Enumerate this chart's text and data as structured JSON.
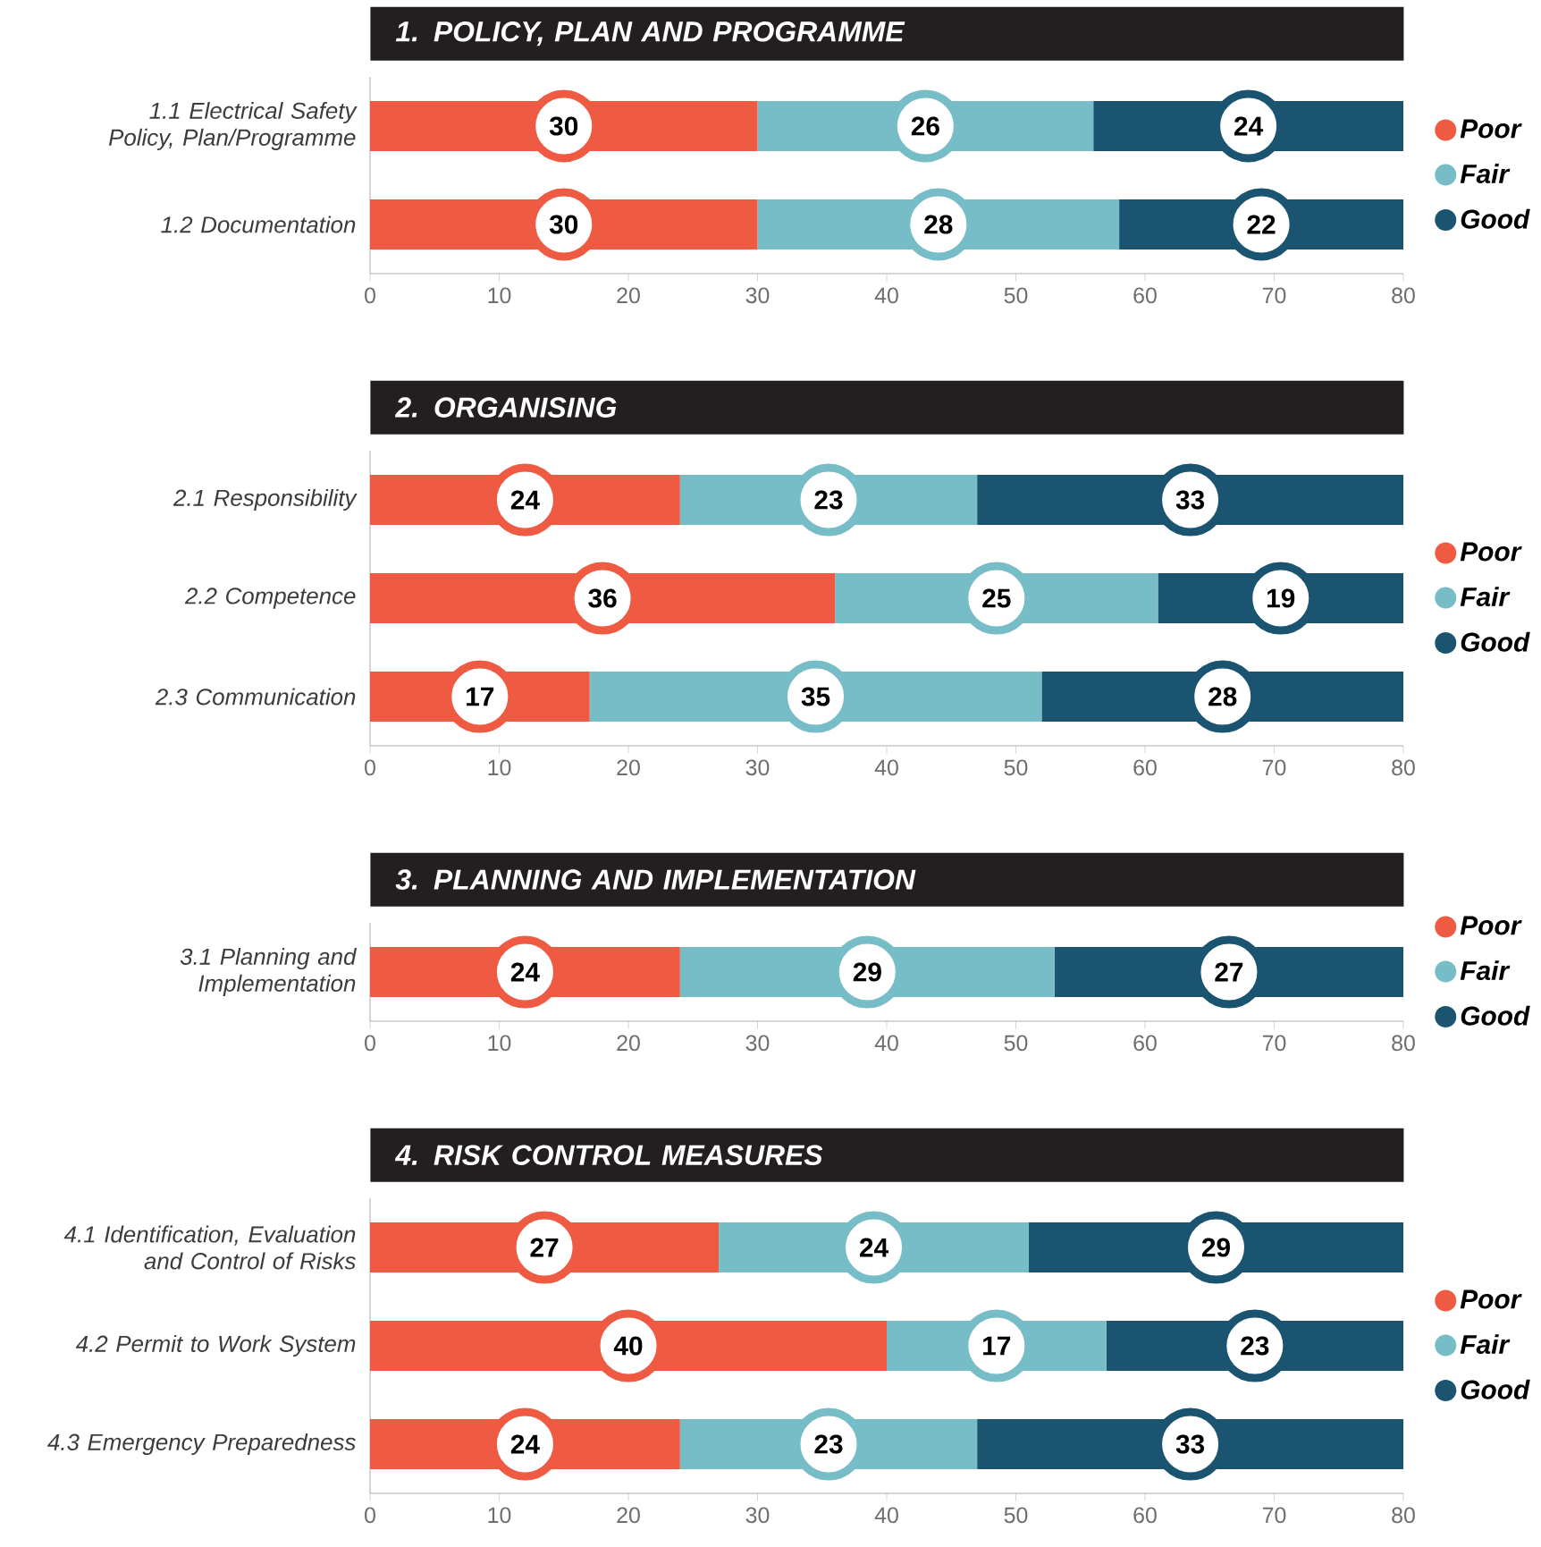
{
  "chart_data": [
    {
      "type": "bar",
      "orientation": "horizontal",
      "stacked": true,
      "title": "1. POLICY, PLAN AND PROGRAMME",
      "categories": [
        "1.1 Electrical Safety Policy, Plan/Programme",
        "1.2 Documentation"
      ],
      "series": [
        {
          "name": "Poor",
          "color": "#ef5a42",
          "values": [
            30,
            30
          ]
        },
        {
          "name": "Fair",
          "color": "#77bdc7",
          "values": [
            26,
            28
          ]
        },
        {
          "name": "Good",
          "color": "#1b5470",
          "values": [
            24,
            22
          ]
        }
      ],
      "xlim": [
        0,
        80
      ],
      "xticks": [
        0,
        10,
        20,
        30,
        40,
        50,
        60,
        70,
        80
      ],
      "data_labels": true,
      "legend": "right"
    },
    {
      "type": "bar",
      "orientation": "horizontal",
      "stacked": true,
      "title": "2. ORGANISING",
      "categories": [
        "2.1 Responsibility",
        "2.2 Competence",
        "2.3 Communication"
      ],
      "series": [
        {
          "name": "Poor",
          "color": "#ef5a42",
          "values": [
            24,
            36,
            17
          ]
        },
        {
          "name": "Fair",
          "color": "#77bdc7",
          "values": [
            23,
            25,
            35
          ]
        },
        {
          "name": "Good",
          "color": "#1b5470",
          "values": [
            33,
            19,
            28
          ]
        }
      ],
      "xlim": [
        0,
        80
      ],
      "xticks": [
        0,
        10,
        20,
        30,
        40,
        50,
        60,
        70,
        80
      ],
      "data_labels": true,
      "legend": "right"
    },
    {
      "type": "bar",
      "orientation": "horizontal",
      "stacked": true,
      "title": "3. PLANNING AND IMPLEMENTATION",
      "categories": [
        "3.1 Planning and Implementation"
      ],
      "series": [
        {
          "name": "Poor",
          "color": "#ef5a42",
          "values": [
            24
          ]
        },
        {
          "name": "Fair",
          "color": "#77bdc7",
          "values": [
            29
          ]
        },
        {
          "name": "Good",
          "color": "#1b5470",
          "values": [
            27
          ]
        }
      ],
      "xlim": [
        0,
        80
      ],
      "xticks": [
        0,
        10,
        20,
        30,
        40,
        50,
        60,
        70,
        80
      ],
      "data_labels": true,
      "legend": "right"
    },
    {
      "type": "bar",
      "orientation": "horizontal",
      "stacked": true,
      "title": "4. RISK CONTROL MEASURES",
      "categories": [
        "4.1 Identification, Evaluation and Control of Risks",
        "4.2 Permit to Work System",
        "4.3 Emergency Preparedness"
      ],
      "series": [
        {
          "name": "Poor",
          "color": "#ef5a42",
          "values": [
            27,
            40,
            24
          ]
        },
        {
          "name": "Fair",
          "color": "#77bdc7",
          "values": [
            24,
            17,
            23
          ]
        },
        {
          "name": "Good",
          "color": "#1b5470",
          "values": [
            29,
            23,
            33
          ]
        }
      ],
      "xlim": [
        0,
        80
      ],
      "xticks": [
        0,
        10,
        20,
        30,
        40,
        50,
        60,
        70,
        80
      ],
      "data_labels": true,
      "legend": "right"
    }
  ]
}
